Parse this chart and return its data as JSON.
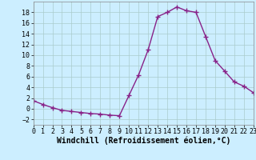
{
  "x": [
    0,
    1,
    2,
    3,
    4,
    5,
    6,
    7,
    8,
    9,
    10,
    11,
    12,
    13,
    14,
    15,
    16,
    17,
    18,
    19,
    20,
    21,
    22,
    23
  ],
  "y": [
    1.5,
    0.8,
    0.2,
    -0.3,
    -0.5,
    -0.7,
    -0.9,
    -1.0,
    -1.2,
    -1.3,
    2.5,
    6.3,
    11.0,
    17.2,
    18.0,
    19.0,
    18.3,
    18.0,
    13.5,
    9.0,
    7.0,
    5.0,
    4.2,
    3.0
  ],
  "line_color": "#882288",
  "marker": "+",
  "marker_size": 4,
  "linewidth": 1.0,
  "xlabel": "Windchill (Refroidissement éolien,°C)",
  "xlim": [
    0,
    23
  ],
  "ylim": [
    -3,
    20
  ],
  "yticks": [
    -2,
    0,
    2,
    4,
    6,
    8,
    10,
    12,
    14,
    16,
    18
  ],
  "xticks": [
    0,
    1,
    2,
    3,
    4,
    5,
    6,
    7,
    8,
    9,
    10,
    11,
    12,
    13,
    14,
    15,
    16,
    17,
    18,
    19,
    20,
    21,
    22,
    23
  ],
  "bg_color": "#cceeff",
  "grid_color": "#aacccc",
  "xlabel_fontsize": 7,
  "tick_fontsize": 6
}
